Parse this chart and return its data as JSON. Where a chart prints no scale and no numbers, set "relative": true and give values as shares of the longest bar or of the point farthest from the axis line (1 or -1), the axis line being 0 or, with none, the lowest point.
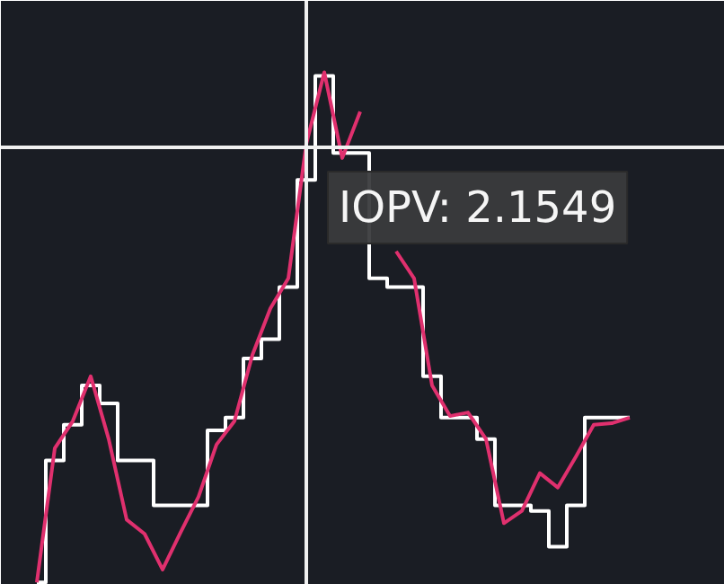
{
  "chart_data": {
    "type": "line",
    "relative": true,
    "categories": [
      null,
      null,
      null,
      null,
      null,
      null,
      null,
      null,
      null,
      null,
      null,
      null,
      null,
      null,
      null,
      null,
      null,
      null,
      null,
      null,
      null,
      null,
      null,
      null,
      null,
      null,
      null,
      null,
      null,
      null,
      null,
      null,
      null,
      null
    ],
    "series": [
      {
        "type": "step",
        "color": "#ffffff",
        "values": [
          0,
          0.239,
          0.309,
          0.386,
          0.351,
          0.239,
          0.239,
          0.151,
          0.151,
          0.151,
          0.298,
          0.323,
          0.439,
          0.477,
          0.579,
          0.789,
          0.993,
          0.842,
          0.842,
          0.596,
          0.579,
          0.579,
          0.404,
          0.323,
          0.323,
          0.281,
          0.151,
          0.151,
          0.14,
          0.07,
          0.151,
          0.323,
          0.323,
          0.323
        ]
      },
      {
        "color": "#e0306e",
        "values": [
          0,
          0.263,
          0.316,
          0.404,
          0.281,
          0.123,
          0.095,
          0.025,
          0.098,
          0.168,
          0.27,
          0.316,
          0.446,
          0.537,
          0.596,
          0.86,
          1,
          0.832,
          0.923,
          null,
          0.649,
          0.596,
          0.386,
          0.326,
          0.333,
          0.281,
          0.116,
          0.14,
          0.214,
          0.186,
          0.246,
          0.309,
          0.312,
          0.323
        ]
      }
    ],
    "ref_lines": [
      {
        "axis": "y",
        "value": 0.853,
        "color": "#f0f0f0"
      }
    ],
    "annotations": [
      "IOPV: 2.1549"
    ],
    "grid": false
  }
}
